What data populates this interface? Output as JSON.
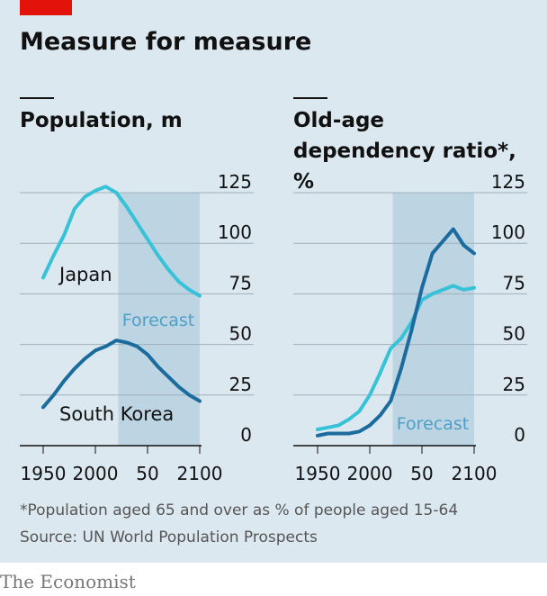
{
  "title": "Measure for measure",
  "footnote": "*Population aged 65 and over as % of people aged 15-64",
  "source": "Source: UN World Population Prospects",
  "brand": "The Economist",
  "chart_data": [
    {
      "type": "line",
      "title": "Population, m",
      "x": [
        1950,
        1960,
        1970,
        1980,
        1990,
        2000,
        2010,
        2020,
        2030,
        2040,
        2050,
        2060,
        2070,
        2080,
        2090,
        2100
      ],
      "series": [
        {
          "name": "Japan",
          "color": "#38c2d8",
          "values": [
            83,
            94,
            104,
            117,
            123,
            126,
            128,
            125,
            118,
            110,
            102,
            94,
            87,
            81,
            77,
            74
          ]
        },
        {
          "name": "South Korea",
          "color": "#1b6b9e",
          "values": [
            19,
            25,
            32,
            38,
            43,
            47,
            49,
            52,
            51,
            49,
            45,
            39,
            34,
            29,
            25,
            22
          ]
        }
      ],
      "shade": {
        "from": 2022,
        "to": 2100,
        "label": "Forecast"
      },
      "xlim": [
        1950,
        2100
      ],
      "xticks": [
        1950,
        2000,
        {
          "value": 2050,
          "label": "50"
        },
        2100
      ],
      "ylim": [
        0,
        125
      ],
      "yticks": [
        0,
        25,
        50,
        75,
        100,
        125
      ],
      "grid": true
    },
    {
      "type": "line",
      "title": "Old-age dependency ratio*, %",
      "x": [
        1950,
        1960,
        1970,
        1980,
        1990,
        2000,
        2010,
        2020,
        2030,
        2040,
        2050,
        2060,
        2070,
        2080,
        2090,
        2100
      ],
      "series": [
        {
          "color": "#38c2d8",
          "values": [
            8,
            9,
            10,
            13,
            17,
            25,
            36,
            48,
            53,
            61,
            72,
            75,
            77,
            79,
            77,
            78
          ]
        },
        {
          "color": "#1b6b9e",
          "values": [
            5,
            6,
            6,
            6,
            7,
            10,
            15,
            22,
            38,
            57,
            78,
            95,
            101,
            107,
            99,
            95
          ]
        }
      ],
      "shade": {
        "from": 2022,
        "to": 2100,
        "label": "Forecast"
      },
      "xlim": [
        1950,
        2100
      ],
      "xticks": [
        1950,
        2000,
        {
          "value": 2050,
          "label": "50"
        },
        2100
      ],
      "ylim": [
        0,
        125
      ],
      "yticks": [
        0,
        25,
        50,
        75,
        100,
        125
      ],
      "grid": true
    }
  ]
}
